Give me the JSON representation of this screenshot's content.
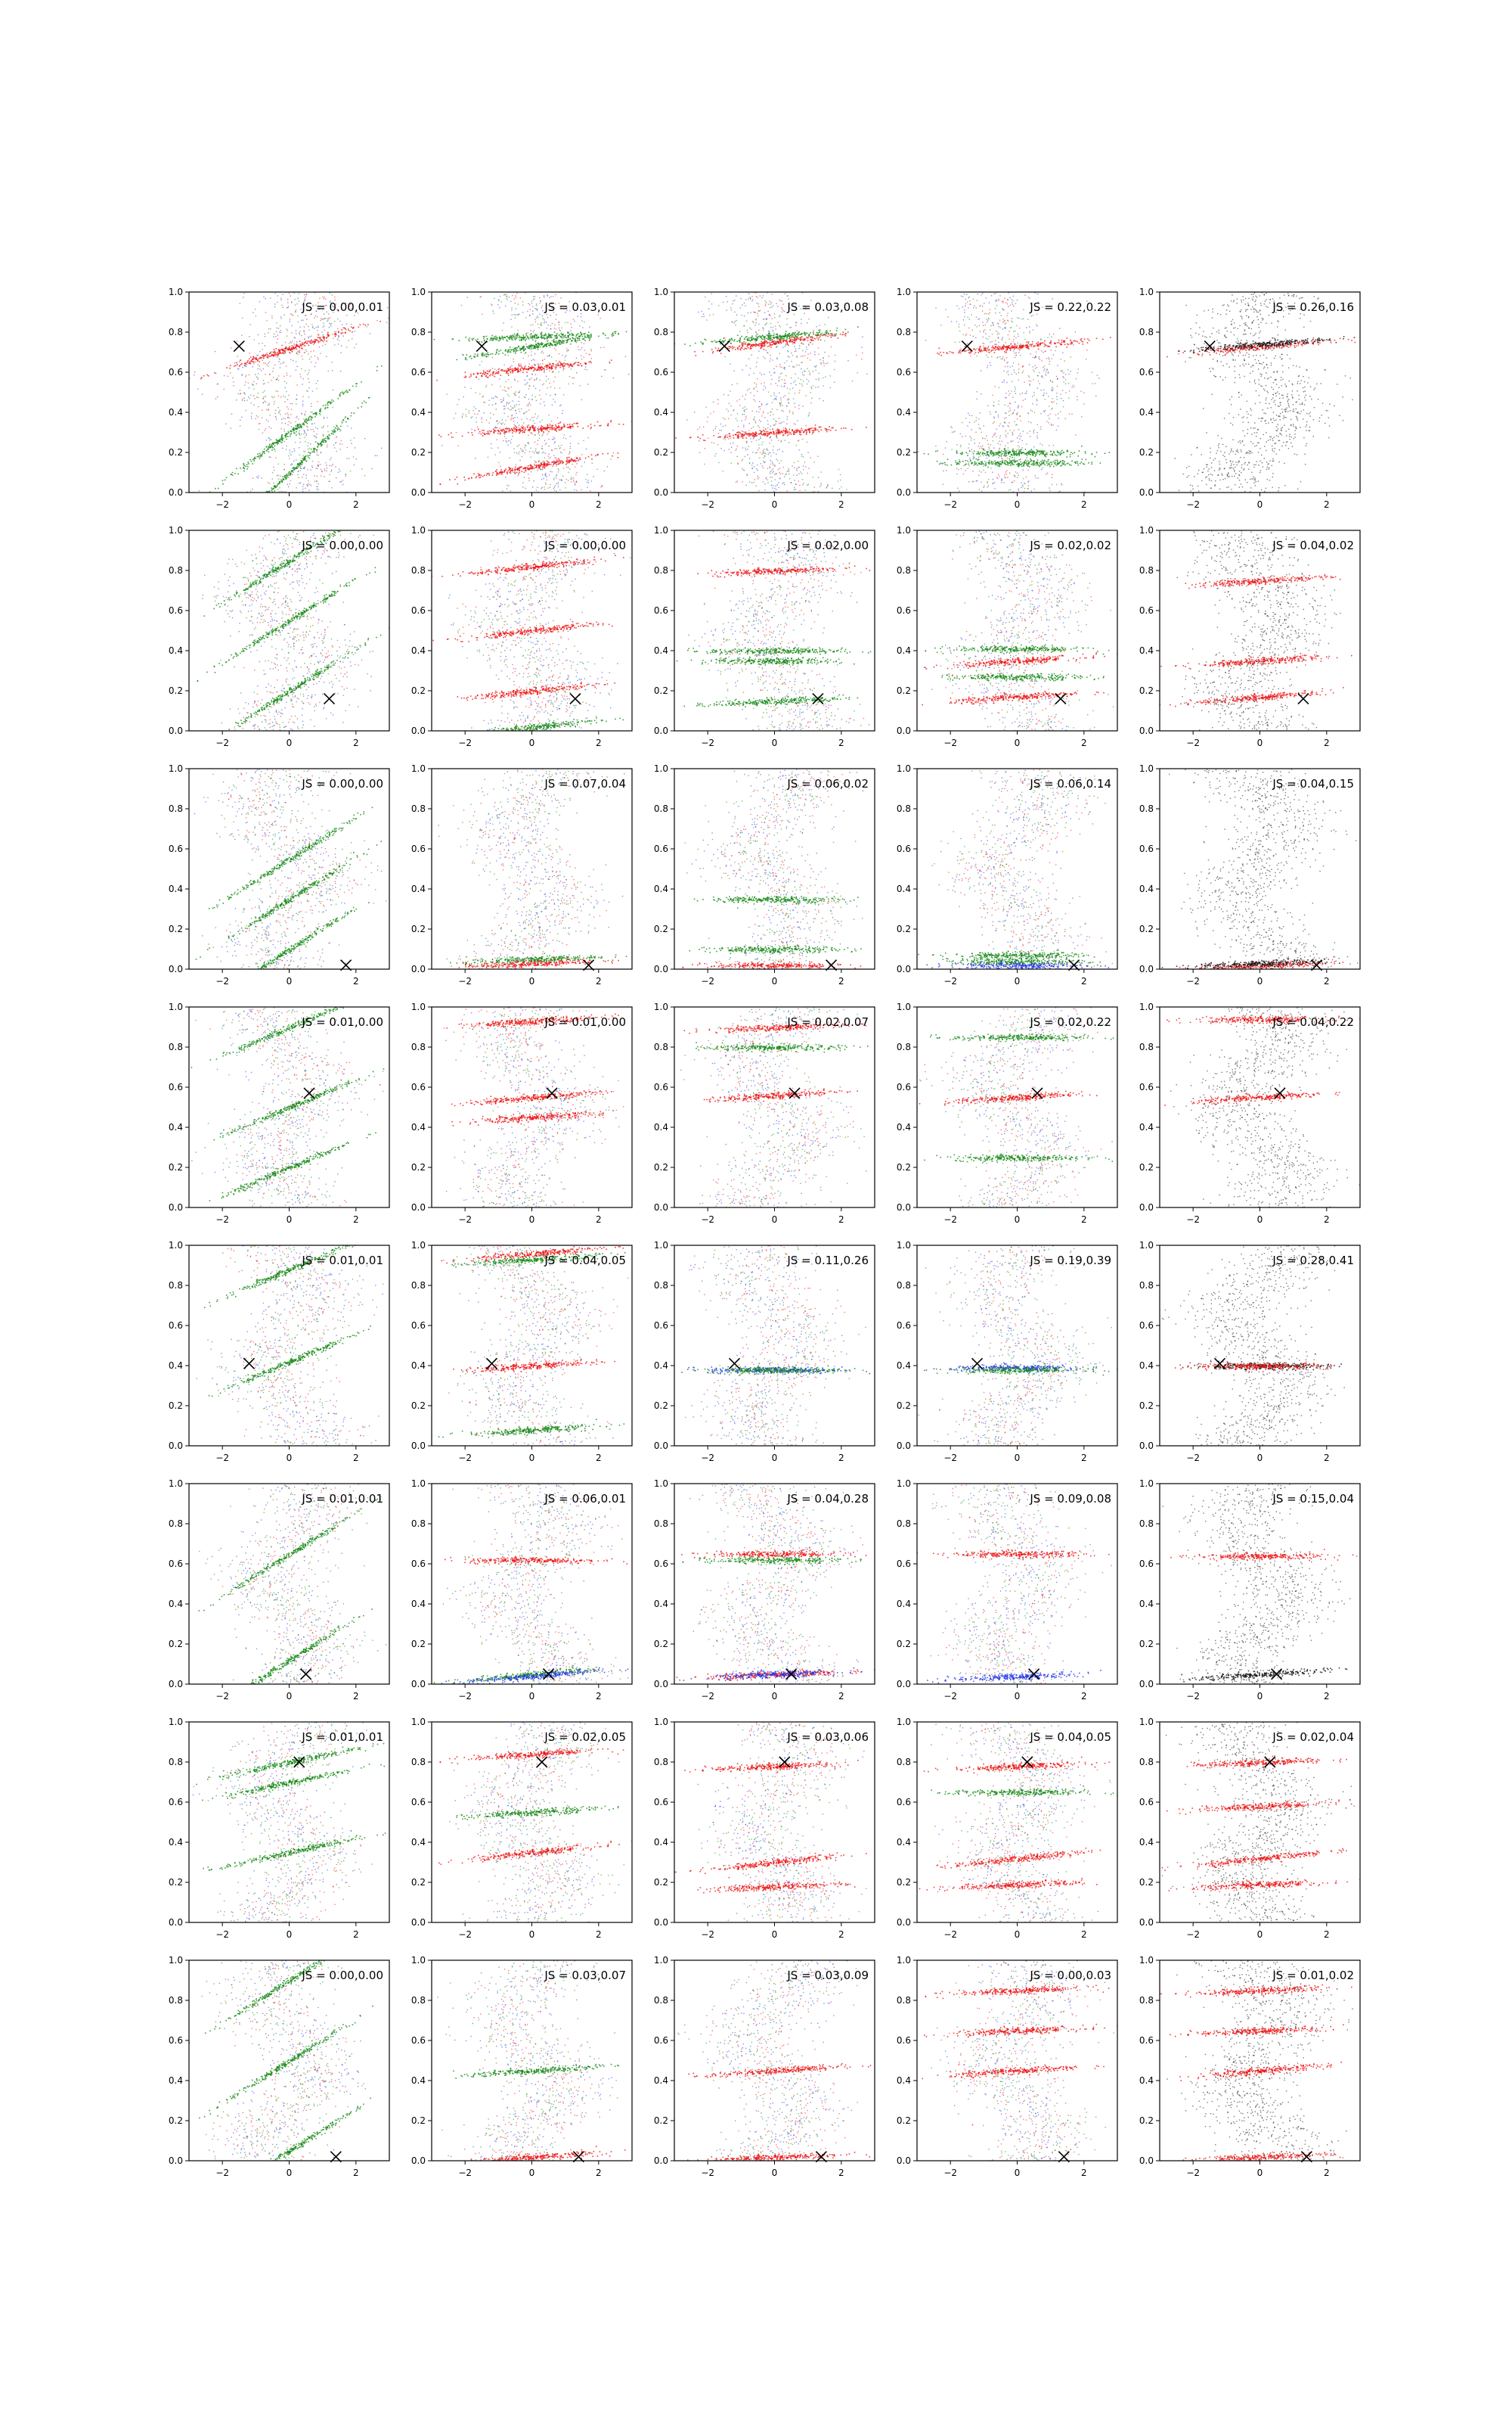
{
  "figure": {
    "rows": 8,
    "cols": 5,
    "xlim": [
      -3,
      3
    ],
    "ylim": [
      0,
      1
    ],
    "xticks": [
      -2,
      0,
      2
    ],
    "yticks": [
      0.0,
      0.2,
      0.4,
      0.6,
      0.8,
      1.0
    ],
    "colors": {
      "blue": "#2233ee",
      "green": "#118811",
      "red": "#ee1111",
      "black": "#111111"
    }
  },
  "chart_data": [
    {
      "type": "scatter",
      "row": 0,
      "col": 0,
      "annotation": "JS = 0.00,0.01",
      "marker_x": -1.5,
      "marker_y": 0.73,
      "bands": [
        [
          0.1,
          "green",
          0.45
        ],
        [
          0.3,
          "green",
          0.35
        ],
        [
          0.72,
          "red",
          0.15
        ]
      ]
    },
    {
      "type": "scatter",
      "row": 0,
      "col": 1,
      "annotation": "JS = 0.03,0.01",
      "marker_x": -1.5,
      "marker_y": 0.73,
      "bands": [
        [
          0.73,
          "green",
          0.08
        ],
        [
          0.78,
          "green",
          0.02
        ],
        [
          0.62,
          "red",
          0.05
        ],
        [
          0.32,
          "red",
          0.03
        ],
        [
          0.13,
          "red",
          0.08
        ]
      ]
    },
    {
      "type": "scatter",
      "row": 0,
      "col": 2,
      "annotation": "JS = 0.03,0.08",
      "marker_x": -1.5,
      "marker_y": 0.73,
      "bands": [
        [
          0.75,
          "red",
          0.06
        ],
        [
          0.78,
          "green",
          0.04
        ],
        [
          0.3,
          "red",
          0.03
        ]
      ]
    },
    {
      "type": "scatter",
      "row": 0,
      "col": 3,
      "annotation": "JS = 0.22,0.22",
      "marker_x": -1.5,
      "marker_y": 0.73,
      "bands": [
        [
          0.73,
          "red",
          0.04
        ],
        [
          0.2,
          "green",
          0.0
        ],
        [
          0.15,
          "green",
          0.0
        ]
      ]
    },
    {
      "type": "scatter",
      "row": 0,
      "col": 4,
      "annotation": "JS = 0.26,0.16",
      "marker_x": -1.5,
      "marker_y": 0.73,
      "bands": [
        [
          0.73,
          "red",
          0.04
        ],
        [
          0.74,
          "black",
          0.04
        ]
      ]
    },
    {
      "type": "scatter",
      "row": 1,
      "col": 0,
      "annotation": "JS = 0.00,0.00",
      "marker_x": 1.2,
      "marker_y": 0.16,
      "bands": [
        [
          0.2,
          "green",
          0.3
        ],
        [
          0.55,
          "green",
          0.3
        ],
        [
          0.85,
          "green",
          0.3
        ]
      ]
    },
    {
      "type": "scatter",
      "row": 1,
      "col": 1,
      "annotation": "JS = 0.00,0.00",
      "marker_x": 1.3,
      "marker_y": 0.16,
      "bands": [
        [
          0.82,
          "red",
          0.05
        ],
        [
          0.5,
          "red",
          0.05
        ],
        [
          0.2,
          "red",
          0.05
        ],
        [
          0.02,
          "green",
          0.05
        ]
      ]
    },
    {
      "type": "scatter",
      "row": 1,
      "col": 2,
      "annotation": "JS = 0.02,0.00",
      "marker_x": 1.3,
      "marker_y": 0.16,
      "bands": [
        [
          0.15,
          "green",
          0.02
        ],
        [
          0.35,
          "green",
          0.0
        ],
        [
          0.4,
          "green",
          0.0
        ],
        [
          0.8,
          "red",
          0.02
        ]
      ]
    },
    {
      "type": "scatter",
      "row": 1,
      "col": 3,
      "annotation": "JS = 0.02,0.02",
      "marker_x": 1.3,
      "marker_y": 0.16,
      "bands": [
        [
          0.17,
          "red",
          0.03
        ],
        [
          0.35,
          "red",
          0.03
        ],
        [
          0.41,
          "green",
          0.0
        ],
        [
          0.27,
          "green",
          0.0
        ]
      ]
    },
    {
      "type": "scatter",
      "row": 1,
      "col": 4,
      "annotation": "JS = 0.04,0.02",
      "marker_x": 1.3,
      "marker_y": 0.16,
      "bands": [
        [
          0.17,
          "red",
          0.04
        ],
        [
          0.35,
          "red",
          0.03
        ],
        [
          0.75,
          "red",
          0.03
        ]
      ]
    },
    {
      "type": "scatter",
      "row": 2,
      "col": 0,
      "annotation": "JS = 0.00,0.00",
      "marker_x": 1.7,
      "marker_y": 0.02,
      "bands": [
        [
          0.35,
          "green",
          0.3
        ],
        [
          0.55,
          "green",
          0.3
        ],
        [
          0.1,
          "green",
          0.3
        ]
      ]
    },
    {
      "type": "scatter",
      "row": 2,
      "col": 1,
      "annotation": "JS = 0.07,0.04",
      "marker_x": 1.7,
      "marker_y": 0.02,
      "bands": [
        [
          0.05,
          "green",
          0.02
        ],
        [
          0.03,
          "red",
          0.02
        ]
      ]
    },
    {
      "type": "scatter",
      "row": 2,
      "col": 2,
      "annotation": "JS = 0.06,0.02",
      "marker_x": 1.7,
      "marker_y": 0.02,
      "bands": [
        [
          0.02,
          "red",
          0.0
        ],
        [
          0.1,
          "green",
          0.0
        ],
        [
          0.35,
          "green",
          0.0
        ]
      ]
    },
    {
      "type": "scatter",
      "row": 2,
      "col": 3,
      "annotation": "JS = 0.06,0.14",
      "marker_x": 1.7,
      "marker_y": 0.02,
      "bands": [
        [
          0.07,
          "green",
          0.0
        ],
        [
          0.04,
          "green",
          0.0
        ],
        [
          0.02,
          "blue",
          0.0
        ]
      ]
    },
    {
      "type": "scatter",
      "row": 2,
      "col": 4,
      "annotation": "JS = 0.04,0.15",
      "marker_x": 1.7,
      "marker_y": 0.02,
      "bands": [
        [
          0.02,
          "red",
          0.02
        ],
        [
          0.03,
          "black",
          0.02
        ]
      ]
    },
    {
      "type": "scatter",
      "row": 3,
      "col": 0,
      "annotation": "JS = 0.01,0.00",
      "marker_x": 0.6,
      "marker_y": 0.57,
      "bands": [
        [
          0.5,
          "green",
          0.2
        ],
        [
          0.9,
          "green",
          0.2
        ],
        [
          0.2,
          "green",
          0.2
        ]
      ]
    },
    {
      "type": "scatter",
      "row": 3,
      "col": 1,
      "annotation": "JS = 0.01,0.00",
      "marker_x": 0.6,
      "marker_y": 0.57,
      "bands": [
        [
          0.93,
          "red",
          0.03
        ],
        [
          0.55,
          "red",
          0.04
        ],
        [
          0.45,
          "red",
          0.03
        ]
      ]
    },
    {
      "type": "scatter",
      "row": 3,
      "col": 2,
      "annotation": "JS = 0.02,0.07",
      "marker_x": 0.6,
      "marker_y": 0.57,
      "bands": [
        [
          0.56,
          "red",
          0.03
        ],
        [
          0.9,
          "red",
          0.02
        ],
        [
          0.8,
          "green",
          0.0
        ]
      ]
    },
    {
      "type": "scatter",
      "row": 3,
      "col": 3,
      "annotation": "JS = 0.02,0.22",
      "marker_x": 0.6,
      "marker_y": 0.57,
      "bands": [
        [
          0.55,
          "red",
          0.03
        ],
        [
          0.85,
          "green",
          0.0
        ],
        [
          0.25,
          "green",
          0.0
        ]
      ]
    },
    {
      "type": "scatter",
      "row": 3,
      "col": 4,
      "annotation": "JS = 0.04,0.22",
      "marker_x": 0.6,
      "marker_y": 0.57,
      "bands": [
        [
          0.55,
          "red",
          0.03
        ],
        [
          0.94,
          "red",
          0.0
        ]
      ]
    },
    {
      "type": "scatter",
      "row": 4,
      "col": 0,
      "annotation": "JS = 0.01,0.01",
      "marker_x": -1.2,
      "marker_y": 0.41,
      "bands": [
        [
          0.42,
          "green",
          0.2
        ],
        [
          0.88,
          "green",
          0.2
        ]
      ]
    },
    {
      "type": "scatter",
      "row": 4,
      "col": 1,
      "annotation": "JS = 0.04,0.05",
      "marker_x": -1.2,
      "marker_y": 0.41,
      "bands": [
        [
          0.4,
          "red",
          0.03
        ],
        [
          0.96,
          "red",
          0.04
        ],
        [
          0.93,
          "green",
          0.03
        ],
        [
          0.08,
          "green",
          0.03
        ]
      ]
    },
    {
      "type": "scatter",
      "row": 4,
      "col": 2,
      "annotation": "JS = 0.11,0.26",
      "marker_x": -1.2,
      "marker_y": 0.41,
      "bands": [
        [
          0.38,
          "blue",
          0.0
        ],
        [
          0.38,
          "green",
          0.0
        ]
      ]
    },
    {
      "type": "scatter",
      "row": 4,
      "col": 3,
      "annotation": "JS = 0.19,0.39",
      "marker_x": -1.2,
      "marker_y": 0.41,
      "bands": [
        [
          0.39,
          "blue",
          0.0
        ],
        [
          0.38,
          "green",
          0.0
        ]
      ]
    },
    {
      "type": "scatter",
      "row": 4,
      "col": 4,
      "annotation": "JS = 0.28,0.41",
      "marker_x": -1.2,
      "marker_y": 0.41,
      "bands": [
        [
          0.4,
          "black",
          0.0
        ],
        [
          0.4,
          "red",
          0.0
        ]
      ]
    },
    {
      "type": "scatter",
      "row": 5,
      "col": 0,
      "annotation": "JS = 0.01,0.01",
      "marker_x": 0.5,
      "marker_y": 0.05,
      "bands": [
        [
          0.12,
          "green",
          0.3
        ],
        [
          0.65,
          "green",
          0.3
        ]
      ]
    },
    {
      "type": "scatter",
      "row": 5,
      "col": 1,
      "annotation": "JS = 0.06,0.01",
      "marker_x": 0.5,
      "marker_y": 0.05,
      "bands": [
        [
          0.05,
          "green",
          0.04
        ],
        [
          0.04,
          "blue",
          0.04
        ],
        [
          0.62,
          "red",
          0.0
        ]
      ]
    },
    {
      "type": "scatter",
      "row": 5,
      "col": 2,
      "annotation": "JS = 0.04,0.28",
      "marker_x": 0.5,
      "marker_y": 0.05,
      "bands": [
        [
          0.05,
          "red",
          0.02
        ],
        [
          0.05,
          "blue",
          0.02
        ],
        [
          0.65,
          "red",
          0.0
        ],
        [
          0.62,
          "green",
          0.0
        ]
      ]
    },
    {
      "type": "scatter",
      "row": 5,
      "col": 3,
      "annotation": "JS = 0.09,0.08",
      "marker_x": 0.5,
      "marker_y": 0.05,
      "bands": [
        [
          0.04,
          "blue",
          0.02
        ],
        [
          0.65,
          "red",
          0.0
        ]
      ]
    },
    {
      "type": "scatter",
      "row": 5,
      "col": 4,
      "annotation": "JS = 0.15,0.04",
      "marker_x": 0.5,
      "marker_y": 0.05,
      "bands": [
        [
          0.05,
          "black",
          0.03
        ],
        [
          0.64,
          "red",
          0.0
        ]
      ]
    },
    {
      "type": "scatter",
      "row": 6,
      "col": 0,
      "annotation": "JS = 0.01,0.01",
      "marker_x": 0.3,
      "marker_y": 0.8,
      "bands": [
        [
          0.35,
          "green",
          0.1
        ],
        [
          0.7,
          "green",
          0.1
        ],
        [
          0.8,
          "green",
          0.1
        ]
      ]
    },
    {
      "type": "scatter",
      "row": 6,
      "col": 1,
      "annotation": "JS = 0.02,0.05",
      "marker_x": 0.3,
      "marker_y": 0.8,
      "bands": [
        [
          0.35,
          "red",
          0.05
        ],
        [
          0.84,
          "red",
          0.03
        ],
        [
          0.55,
          "green",
          0.03
        ]
      ]
    },
    {
      "type": "scatter",
      "row": 6,
      "col": 2,
      "annotation": "JS = 0.03,0.06",
      "marker_x": 0.3,
      "marker_y": 0.8,
      "bands": [
        [
          0.78,
          "red",
          0.02
        ],
        [
          0.3,
          "red",
          0.05
        ],
        [
          0.18,
          "red",
          0.02
        ]
      ]
    },
    {
      "type": "scatter",
      "row": 6,
      "col": 3,
      "annotation": "JS = 0.04,0.05",
      "marker_x": 0.3,
      "marker_y": 0.8,
      "bands": [
        [
          0.78,
          "red",
          0.02
        ],
        [
          0.32,
          "red",
          0.05
        ],
        [
          0.19,
          "red",
          0.02
        ],
        [
          0.65,
          "green",
          0.0
        ]
      ]
    },
    {
      "type": "scatter",
      "row": 6,
      "col": 4,
      "annotation": "JS = 0.02,0.04",
      "marker_x": 0.3,
      "marker_y": 0.8,
      "bands": [
        [
          0.8,
          "red",
          0.02
        ],
        [
          0.32,
          "red",
          0.05
        ],
        [
          0.19,
          "red",
          0.02
        ],
        [
          0.58,
          "red",
          0.02
        ]
      ]
    },
    {
      "type": "scatter",
      "row": 7,
      "col": 0,
      "annotation": "JS = 0.00,0.00",
      "marker_x": 1.4,
      "marker_y": 0.02,
      "bands": [
        [
          0.05,
          "green",
          0.3
        ],
        [
          0.5,
          "green",
          0.3
        ],
        [
          0.9,
          "green",
          0.3
        ]
      ]
    },
    {
      "type": "scatter",
      "row": 7,
      "col": 1,
      "annotation": "JS = 0.03,0.07",
      "marker_x": 1.4,
      "marker_y": 0.02,
      "bands": [
        [
          0.45,
          "green",
          0.03
        ],
        [
          0.02,
          "red",
          0.03
        ]
      ]
    },
    {
      "type": "scatter",
      "row": 7,
      "col": 2,
      "annotation": "JS = 0.03,0.09",
      "marker_x": 1.4,
      "marker_y": 0.02,
      "bands": [
        [
          0.45,
          "red",
          0.03
        ],
        [
          0.02,
          "red",
          0.02
        ]
      ]
    },
    {
      "type": "scatter",
      "row": 7,
      "col": 3,
      "annotation": "JS = 0.00,0.03",
      "marker_x": 1.4,
      "marker_y": 0.02,
      "bands": [
        [
          0.45,
          "red",
          0.03
        ],
        [
          0.65,
          "red",
          0.02
        ],
        [
          0.85,
          "red",
          0.02
        ]
      ]
    },
    {
      "type": "scatter",
      "row": 7,
      "col": 4,
      "annotation": "JS = 0.01,0.02",
      "marker_x": 1.4,
      "marker_y": 0.02,
      "bands": [
        [
          0.45,
          "red",
          0.04
        ],
        [
          0.65,
          "red",
          0.02
        ],
        [
          0.85,
          "red",
          0.02
        ],
        [
          0.02,
          "red",
          0.02
        ]
      ]
    }
  ]
}
